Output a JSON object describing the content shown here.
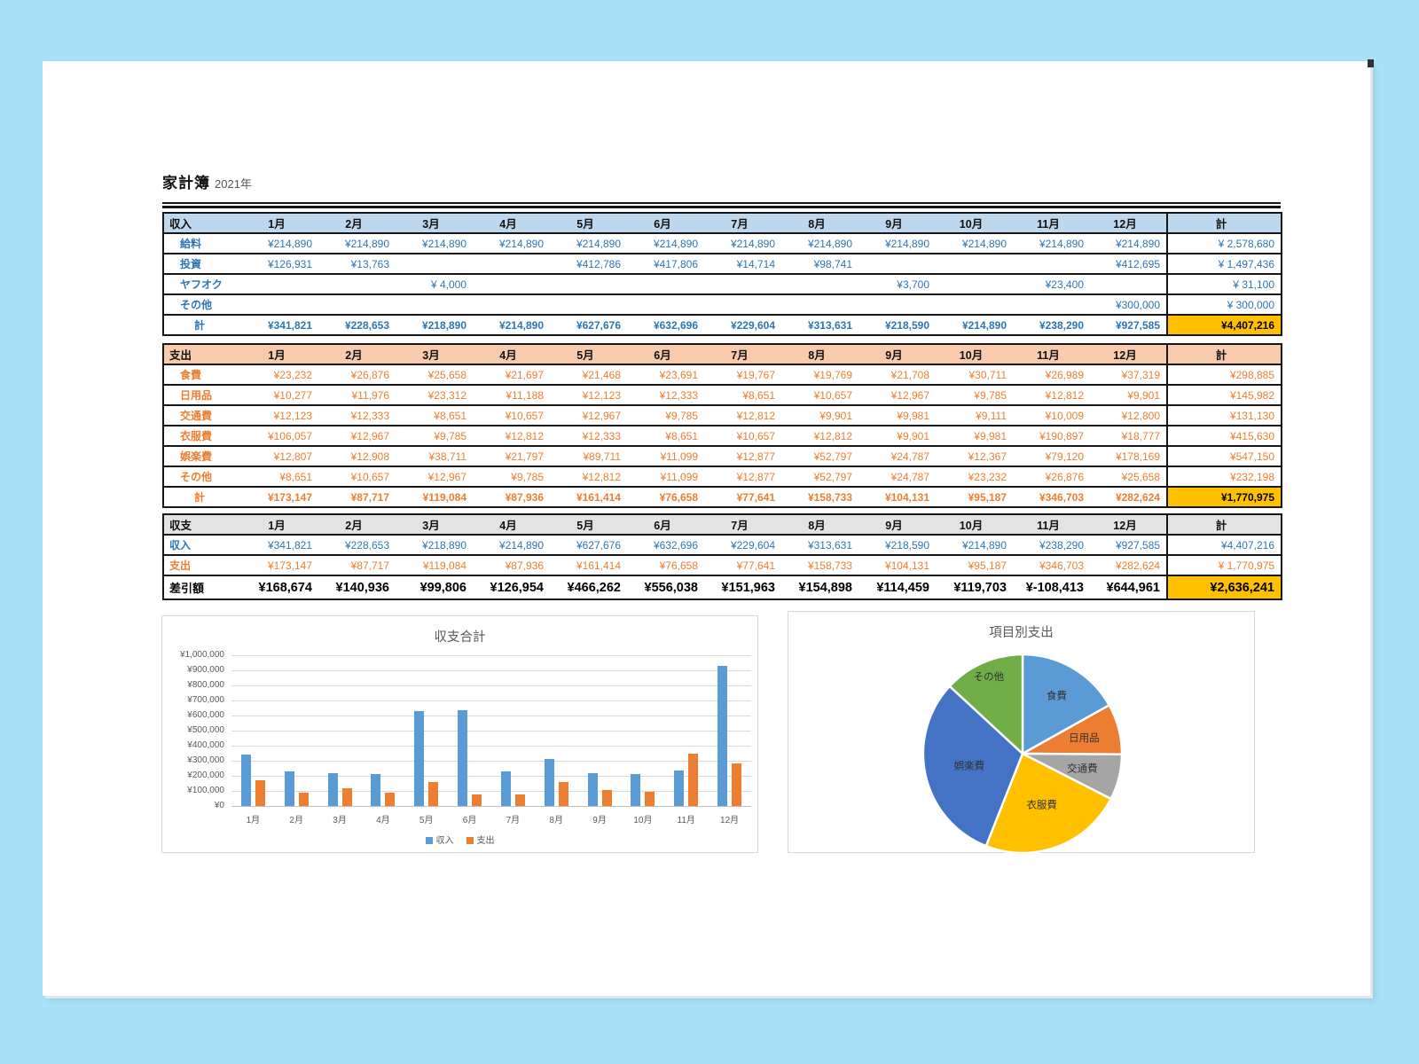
{
  "page": {
    "title": "家計簿",
    "year": "2021年"
  },
  "months": [
    "1月",
    "2月",
    "3月",
    "4月",
    "5月",
    "6月",
    "7月",
    "8月",
    "9月",
    "10月",
    "11月",
    "12月"
  ],
  "total_label": "計",
  "income": {
    "header": "収入",
    "tone": "blue",
    "rows": [
      {
        "label": "給料",
        "values": [
          "¥214,890",
          "¥214,890",
          "¥214,890",
          "¥214,890",
          "¥214,890",
          "¥214,890",
          "¥214,890",
          "¥214,890",
          "¥214,890",
          "¥214,890",
          "¥214,890",
          "¥214,890"
        ],
        "total": "¥ 2,578,680"
      },
      {
        "label": "投資",
        "values": [
          "¥126,931",
          "¥13,763",
          "",
          "",
          "¥412,786",
          "¥417,806",
          "¥14,714",
          "¥98,741",
          "",
          "",
          "",
          "¥412,695"
        ],
        "total": "¥ 1,497,436"
      },
      {
        "label": "ヤフオク",
        "values": [
          "",
          "",
          "¥ 4,000",
          "",
          "",
          "",
          "",
          "",
          "¥3,700",
          "",
          "¥23,400",
          ""
        ],
        "total": "¥ 31,100"
      },
      {
        "label": "その他",
        "values": [
          "",
          "",
          "",
          "",
          "",
          "",
          "",
          "",
          "",
          "",
          "",
          "¥300,000"
        ],
        "total": "¥ 300,000"
      }
    ],
    "total_row": {
      "label": "計",
      "values": [
        "¥341,821",
        "¥228,653",
        "¥218,890",
        "¥214,890",
        "¥627,676",
        "¥632,696",
        "¥229,604",
        "¥313,631",
        "¥218,590",
        "¥214,890",
        "¥238,290",
        "¥927,585"
      ],
      "total": "¥4,407,216"
    }
  },
  "expense": {
    "header": "支出",
    "tone": "orange",
    "rows": [
      {
        "label": "食費",
        "values": [
          "¥23,232",
          "¥26,876",
          "¥25,658",
          "¥21,697",
          "¥21,468",
          "¥23,691",
          "¥19,767",
          "¥19,769",
          "¥21,708",
          "¥30,711",
          "¥26,989",
          "¥37,319"
        ],
        "total": "¥298,885"
      },
      {
        "label": "日用品",
        "values": [
          "¥10,277",
          "¥11,976",
          "¥23,312",
          "¥11,188",
          "¥12,123",
          "¥12,333",
          "¥8,651",
          "¥10,657",
          "¥12,967",
          "¥9,785",
          "¥12,812",
          "¥9,901"
        ],
        "total": "¥145,982"
      },
      {
        "label": "交通費",
        "values": [
          "¥12,123",
          "¥12,333",
          "¥8,651",
          "¥10,657",
          "¥12,967",
          "¥9,785",
          "¥12,812",
          "¥9,901",
          "¥9,981",
          "¥9,111",
          "¥10,009",
          "¥12,800"
        ],
        "total": "¥131,130"
      },
      {
        "label": "衣服費",
        "values": [
          "¥106,057",
          "¥12,967",
          "¥9,785",
          "¥12,812",
          "¥12,333",
          "¥8,651",
          "¥10,657",
          "¥12,812",
          "¥9,901",
          "¥9,981",
          "¥190,897",
          "¥18,777"
        ],
        "total": "¥415,630"
      },
      {
        "label": "娯楽費",
        "values": [
          "¥12,807",
          "¥12,908",
          "¥38,711",
          "¥21,797",
          "¥89,711",
          "¥11,099",
          "¥12,877",
          "¥52,797",
          "¥24,787",
          "¥12,367",
          "¥79,120",
          "¥178,169"
        ],
        "total": "¥547,150"
      },
      {
        "label": "その他",
        "values": [
          "¥8,651",
          "¥10,657",
          "¥12,967",
          "¥9,785",
          "¥12,812",
          "¥11,099",
          "¥12,877",
          "¥52,797",
          "¥24,787",
          "¥23,232",
          "¥26,876",
          "¥25,658"
        ],
        "total": "¥232,198"
      }
    ],
    "total_row": {
      "label": "計",
      "values": [
        "¥173,147",
        "¥87,717",
        "¥119,084",
        "¥87,936",
        "¥161,414",
        "¥76,658",
        "¥77,641",
        "¥158,733",
        "¥104,131",
        "¥95,187",
        "¥346,703",
        "¥282,624"
      ],
      "total": "¥1,770,975"
    }
  },
  "balance": {
    "header": "収支",
    "tone": "black",
    "rows": [
      {
        "label": "収入",
        "tone": "blue",
        "values": [
          "¥341,821",
          "¥228,653",
          "¥218,890",
          "¥214,890",
          "¥627,676",
          "¥632,696",
          "¥229,604",
          "¥313,631",
          "¥218,590",
          "¥214,890",
          "¥238,290",
          "¥927,585"
        ],
        "total": "¥4,407,216"
      },
      {
        "label": "支出",
        "tone": "orange",
        "values": [
          "¥173,147",
          "¥87,717",
          "¥119,084",
          "¥87,936",
          "¥161,414",
          "¥76,658",
          "¥77,641",
          "¥158,733",
          "¥104,131",
          "¥95,187",
          "¥346,703",
          "¥282,624"
        ],
        "total": "¥ 1,770,975"
      }
    ],
    "total_row": {
      "label": "差引額",
      "tone": "black",
      "values": [
        "¥168,674",
        "¥140,936",
        "¥99,806",
        "¥126,954",
        "¥466,262",
        "¥556,038",
        "¥151,963",
        "¥154,898",
        "¥114,459",
        "¥119,703",
        "¥-108,413",
        "¥644,961"
      ],
      "total": "¥2,636,241"
    }
  },
  "chart_data": [
    {
      "type": "bar",
      "title": "収支合計",
      "categories": [
        "1月",
        "2月",
        "3月",
        "4月",
        "5月",
        "6月",
        "7月",
        "8月",
        "9月",
        "10月",
        "11月",
        "12月"
      ],
      "series": [
        {
          "name": "収入",
          "color": "#5B9BD5",
          "values": [
            341821,
            228653,
            218890,
            214890,
            627676,
            632696,
            229604,
            313631,
            218590,
            214890,
            238290,
            927585
          ]
        },
        {
          "name": "支出",
          "color": "#ED7D31",
          "values": [
            173147,
            87717,
            119084,
            87936,
            161414,
            76658,
            77641,
            158733,
            104131,
            95187,
            346703,
            282624
          ]
        }
      ],
      "ylim": [
        0,
        1000000
      ],
      "ytick_labels": [
        "¥0",
        "¥100,000",
        "¥200,000",
        "¥300,000",
        "¥400,000",
        "¥500,000",
        "¥600,000",
        "¥700,000",
        "¥800,000",
        "¥900,000",
        "¥1,000,000"
      ],
      "grid": true,
      "legend_position": "bottom"
    },
    {
      "type": "pie",
      "title": "項目別支出",
      "labels": [
        "食費",
        "日用品",
        "交通費",
        "衣服費",
        "娯楽費",
        "その他"
      ],
      "values": [
        298885,
        145982,
        131130,
        415630,
        547150,
        232198
      ],
      "colors": [
        "#5B9BD5",
        "#ED7D31",
        "#A5A5A5",
        "#FFC000",
        "#4472C4",
        "#70AD47"
      ],
      "start_angle_deg": 0,
      "direction": "clockwise"
    }
  ]
}
